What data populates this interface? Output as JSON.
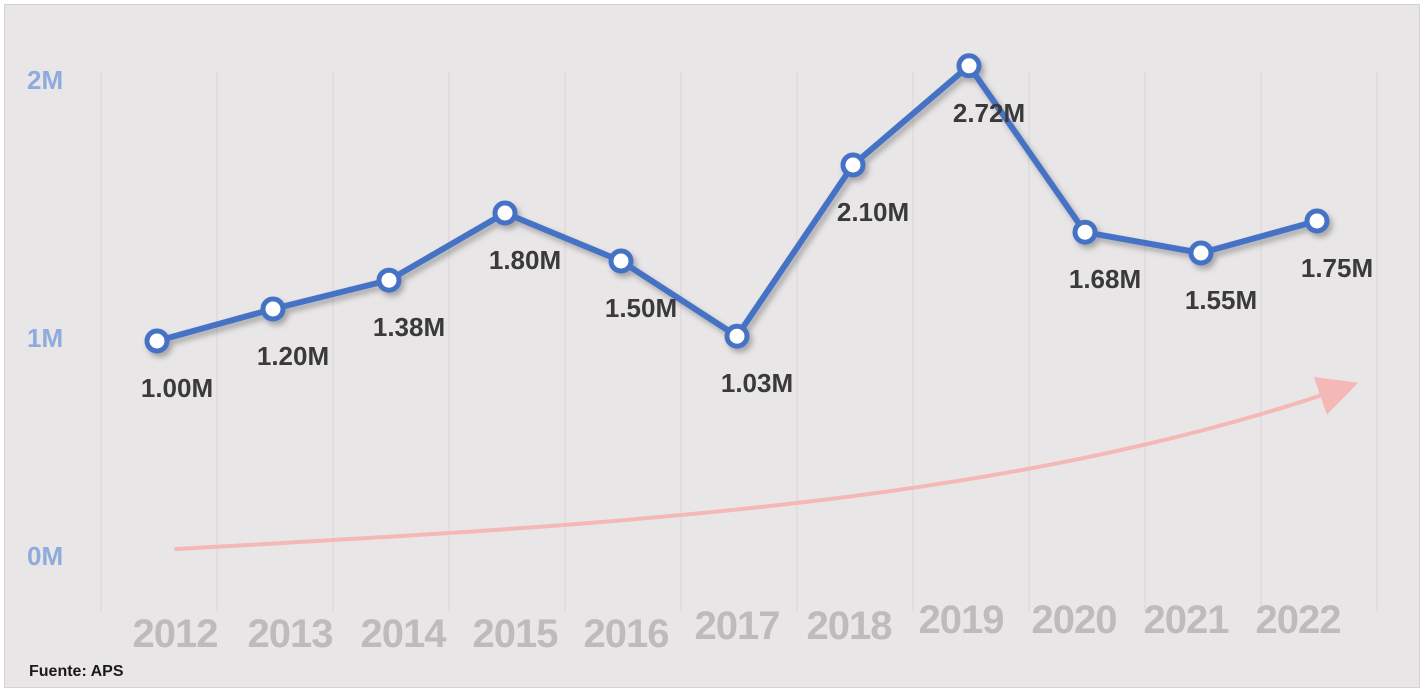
{
  "chart_data": {
    "type": "line",
    "categories": [
      "2012",
      "2013",
      "2014",
      "2015",
      "2016",
      "2017",
      "2018",
      "2019",
      "2020",
      "2021",
      "2022"
    ],
    "series": [
      {
        "values": [
          1.0,
          1.2,
          1.38,
          1.8,
          1.5,
          1.03,
          2.1,
          2.72,
          1.68,
          1.55,
          1.75
        ],
        "data_labels": [
          "1.00M",
          "1.20M",
          "1.38M",
          "1.80M",
          "1.50M",
          "1.03M",
          "2.10M",
          "2.72M",
          "1.68M",
          "1.55M",
          "1.75M"
        ],
        "color": "#4472c4"
      }
    ],
    "y_ticks": [
      "0M",
      "1M",
      "2M"
    ],
    "gridlines": "vertical",
    "trend_arrow": {
      "color": "#f4b8b6"
    },
    "colors": {
      "background": "#e8e6e7",
      "line": "#4472c4",
      "marker_fill": "#ffffff",
      "y_tick": "#8faadc",
      "x_tick": "#bdbbbc",
      "data_label": "#3a3a3a",
      "grid": "#d9d7d8"
    }
  },
  "source": "Fuente: APS"
}
